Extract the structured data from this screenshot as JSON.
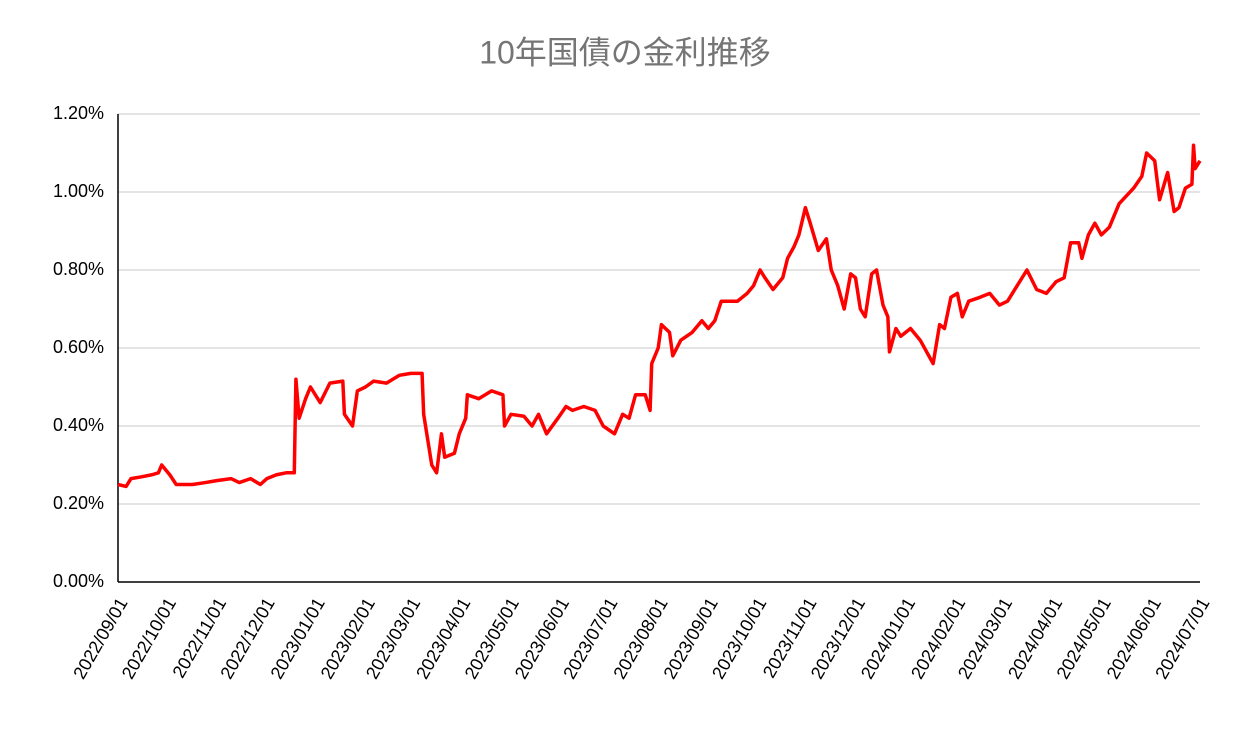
{
  "chart_data": {
    "type": "line",
    "title": "10年国債の金利推移",
    "color": "#ff0000",
    "grid": true,
    "x": [
      "2022/09/01",
      "2022/09/06",
      "2022/09/09",
      "2022/09/16",
      "2022/09/22",
      "2022/09/26",
      "2022/09/28",
      "2022/10/03",
      "2022/10/07",
      "2022/10/17",
      "2022/10/25",
      "2022/11/01",
      "2022/11/10",
      "2022/11/15",
      "2022/11/22",
      "2022/11/28",
      "2022/12/02",
      "2022/12/08",
      "2022/12/14",
      "2022/12/19",
      "2022/12/20",
      "2022/12/22",
      "2022/12/26",
      "2022/12/29",
      "2023/01/04",
      "2023/01/10",
      "2023/01/18",
      "2023/01/19",
      "2023/01/24",
      "2023/01/27",
      "2023/02/01",
      "2023/02/06",
      "2023/02/14",
      "2023/02/22",
      "2023/03/01",
      "2023/03/08",
      "2023/03/09",
      "2023/03/14",
      "2023/03/17",
      "2023/03/20",
      "2023/03/22",
      "2023/03/28",
      "2023/03/31",
      "2023/04/04",
      "2023/04/05",
      "2023/04/12",
      "2023/04/20",
      "2023/04/27",
      "2023/04/28",
      "2023/05/02",
      "2023/05/10",
      "2023/05/15",
      "2023/05/19",
      "2023/05/24",
      "2023/05/31",
      "2023/06/05",
      "2023/06/09",
      "2023/06/16",
      "2023/06/23",
      "2023/06/28",
      "2023/07/05",
      "2023/07/10",
      "2023/07/14",
      "2023/07/18",
      "2023/07/24",
      "2023/07/27",
      "2023/07/28",
      "2023/08/01",
      "2023/08/03",
      "2023/08/08",
      "2023/08/10",
      "2023/08/15",
      "2023/08/22",
      "2023/08/28",
      "2023/09/01",
      "2023/09/05",
      "2023/09/09",
      "2023/09/19",
      "2023/09/25",
      "2023/09/29",
      "2023/10/03",
      "2023/10/06",
      "2023/10/11",
      "2023/10/17",
      "2023/10/20",
      "2023/10/24",
      "2023/10/27",
      "2023/10/31",
      "2023/11/03",
      "2023/11/08",
      "2023/11/13",
      "2023/11/16",
      "2023/11/20",
      "2023/11/24",
      "2023/11/28",
      "2023/12/01",
      "2023/12/04",
      "2023/12/07",
      "2023/12/11",
      "2023/12/14",
      "2023/12/18",
      "2023/12/21",
      "2023/12/22",
      "2023/12/26",
      "2023/12/29",
      "2024/01/04",
      "2024/01/10",
      "2024/01/18",
      "2024/01/22",
      "2024/01/25",
      "2024/01/29",
      "2024/02/02",
      "2024/02/05",
      "2024/02/09",
      "2024/02/16",
      "2024/02/22",
      "2024/02/28",
      "2024/03/04",
      "2024/03/10",
      "2024/03/16",
      "2024/03/22",
      "2024/03/28",
      "2024/04/03",
      "2024/04/08",
      "2024/04/12",
      "2024/04/17",
      "2024/04/19",
      "2024/04/23",
      "2024/04/27",
      "2024/05/01",
      "2024/05/06",
      "2024/05/12",
      "2024/05/21",
      "2024/05/26",
      "2024/05/29",
      "2024/06/03",
      "2024/06/06",
      "2024/06/11",
      "2024/06/15",
      "2024/06/18",
      "2024/06/22",
      "2024/06/26",
      "2024/06/27",
      "2024/06/28",
      "2024/07/01"
    ],
    "values": [
      0.25,
      0.245,
      0.265,
      0.27,
      0.275,
      0.28,
      0.3,
      0.275,
      0.25,
      0.25,
      0.255,
      0.26,
      0.265,
      0.255,
      0.265,
      0.25,
      0.265,
      0.275,
      0.28,
      0.28,
      0.52,
      0.42,
      0.47,
      0.5,
      0.46,
      0.51,
      0.515,
      0.43,
      0.4,
      0.49,
      0.5,
      0.515,
      0.51,
      0.53,
      0.535,
      0.535,
      0.43,
      0.3,
      0.28,
      0.38,
      0.32,
      0.33,
      0.38,
      0.42,
      0.48,
      0.47,
      0.49,
      0.48,
      0.4,
      0.43,
      0.425,
      0.4,
      0.43,
      0.38,
      0.42,
      0.45,
      0.44,
      0.45,
      0.44,
      0.4,
      0.38,
      0.43,
      0.42,
      0.48,
      0.48,
      0.44,
      0.56,
      0.6,
      0.66,
      0.64,
      0.58,
      0.62,
      0.64,
      0.67,
      0.65,
      0.67,
      0.72,
      0.72,
      0.74,
      0.76,
      0.8,
      0.78,
      0.75,
      0.78,
      0.83,
      0.86,
      0.89,
      0.96,
      0.92,
      0.85,
      0.88,
      0.8,
      0.76,
      0.7,
      0.79,
      0.78,
      0.7,
      0.68,
      0.79,
      0.8,
      0.71,
      0.68,
      0.59,
      0.65,
      0.63,
      0.65,
      0.62,
      0.56,
      0.66,
      0.65,
      0.73,
      0.74,
      0.68,
      0.72,
      0.73,
      0.74,
      0.71,
      0.72,
      0.76,
      0.8,
      0.75,
      0.74,
      0.77,
      0.78,
      0.87,
      0.87,
      0.83,
      0.89,
      0.92,
      0.89,
      0.91,
      0.97,
      1.01,
      1.04,
      1.1,
      1.08,
      0.98,
      1.05,
      0.95,
      0.96,
      1.01,
      1.02,
      1.12,
      1.06,
      1.08
    ],
    "xlim": [
      "2022/09/01",
      "2024/07/01"
    ],
    "xticks": [
      "2022/09/01",
      "2022/10/01",
      "2022/11/01",
      "2022/12/01",
      "2023/01/01",
      "2023/02/01",
      "2023/03/01",
      "2023/04/01",
      "2023/05/01",
      "2023/06/01",
      "2023/07/01",
      "2023/08/01",
      "2023/09/01",
      "2023/10/01",
      "2023/11/01",
      "2023/12/01",
      "2024/01/01",
      "2024/02/01",
      "2024/03/01",
      "2024/04/01",
      "2024/05/01",
      "2024/06/01",
      "2024/07/01"
    ],
    "ylim": [
      0,
      1.2
    ],
    "yticks": [
      {
        "value": 0,
        "label": "0.00%"
      },
      {
        "value": 0.2,
        "label": "0.20%"
      },
      {
        "value": 0.4,
        "label": "0.40%"
      },
      {
        "value": 0.6,
        "label": "0.60%"
      },
      {
        "value": 0.8,
        "label": "0.80%"
      },
      {
        "value": 1.0,
        "label": "1.00%"
      },
      {
        "value": 1.2,
        "label": "1.20%"
      }
    ]
  }
}
